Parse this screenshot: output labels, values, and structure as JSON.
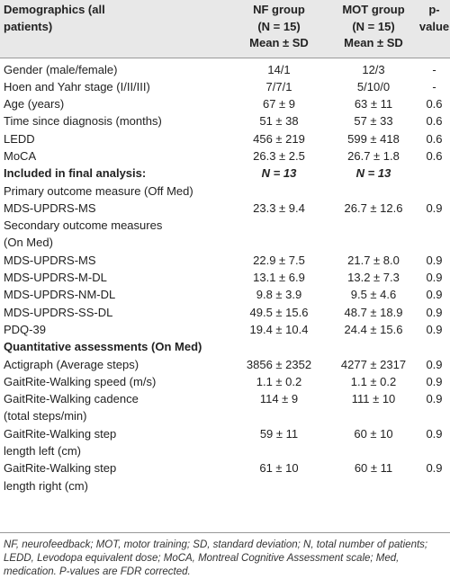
{
  "table": {
    "header": [
      [
        "Demographics (all",
        "patients)"
      ],
      [
        "NF group",
        "(N = 15)",
        "Mean ± SD"
      ],
      [
        "MOT group",
        "(N = 15)",
        "Mean ± SD"
      ],
      [
        "p-",
        "value"
      ]
    ],
    "rows": [
      {
        "label": [
          "Gender (male/female)"
        ],
        "nf": "14/1",
        "mot": "12/3",
        "p": "-"
      },
      {
        "label": [
          "Hoen and Yahr stage (I/II/III)"
        ],
        "nf": "7/7/1",
        "mot": "5/10/0",
        "p": "-"
      },
      {
        "label": [
          "Age (years)"
        ],
        "nf": "67 ± 9",
        "mot": "63 ± 11",
        "p": "0.6"
      },
      {
        "label": [
          "Time since diagnosis (months)"
        ],
        "nf": "51 ± 38",
        "mot": "57 ± 33",
        "p": "0.6"
      },
      {
        "label": [
          "LEDD"
        ],
        "nf": "456 ± 219",
        "mot": "599 ± 418",
        "p": "0.6"
      },
      {
        "label": [
          "MoCA"
        ],
        "nf": "26.3 ± 2.5",
        "mot": "26.7 ± 1.8",
        "p": "0.6"
      },
      {
        "label": [
          "Included in final analysis:"
        ],
        "nf": "N = 13",
        "mot": "N = 13",
        "p": "",
        "bold": true
      },
      {
        "label": [
          "Primary outcome measure (Off Med)"
        ],
        "nf": "",
        "mot": "",
        "p": ""
      },
      {
        "label": [
          "MDS-UPDRS-MS"
        ],
        "nf": "23.3 ± 9.4",
        "mot": "26.7 ± 12.6",
        "p": "0.9"
      },
      {
        "label": [
          "Secondary outcome measures",
          "(On Med)"
        ],
        "nf": "",
        "mot": "",
        "p": ""
      },
      {
        "label": [
          "MDS-UPDRS-MS"
        ],
        "nf": "22.9 ± 7.5",
        "mot": "21.7 ± 8.0",
        "p": "0.9"
      },
      {
        "label": [
          "MDS-UPDRS-M-DL"
        ],
        "nf": "13.1 ± 6.9",
        "mot": "13.2 ± 7.3",
        "p": "0.9"
      },
      {
        "label": [
          "MDS-UPDRS-NM-DL"
        ],
        "nf": "9.8 ± 3.9",
        "mot": "9.5 ± 4.6",
        "p": "0.9"
      },
      {
        "label": [
          "MDS-UPDRS-SS-DL"
        ],
        "nf": "49.5 ± 15.6",
        "mot": "48.7 ± 18.9",
        "p": "0.9"
      },
      {
        "label": [
          "PDQ-39"
        ],
        "nf": "19.4 ± 10.4",
        "mot": "24.4 ± 15.6",
        "p": "0.9"
      },
      {
        "label": [
          "Quantitative assessments (On Med)"
        ],
        "nf": "",
        "mot": "",
        "p": "",
        "bold": true
      },
      {
        "label": [
          "Actigraph (Average steps)"
        ],
        "nf": "3856 ± 2352",
        "mot": "4277 ± 2317",
        "p": "0.9"
      },
      {
        "label": [
          "GaitRite-Walking speed (m/s)"
        ],
        "nf": "1.1 ± 0.2",
        "mot": "1.1 ± 0.2",
        "p": "0.9"
      },
      {
        "label": [
          "GaitRite-Walking cadence",
          "(total steps/min)"
        ],
        "nf": "114 ± 9",
        "mot": "111 ± 10",
        "p": "0.9"
      },
      {
        "label": [
          "GaitRite-Walking step",
          "length left (cm)"
        ],
        "nf": "59 ± 11",
        "mot": "60 ± 10",
        "p": "0.9"
      },
      {
        "label": [
          "GaitRite-Walking step",
          "length right (cm)"
        ],
        "nf": "61 ± 10",
        "mot": "60 ± 11",
        "p": "0.9"
      }
    ],
    "footnote": "NF, neurofeedback; MOT, motor training; SD, standard deviation; N, total number of patients; LEDD, Levodopa equivalent dose; MoCA, Montreal Cognitive Assessment scale; Med, medication. P-values are FDR corrected."
  }
}
